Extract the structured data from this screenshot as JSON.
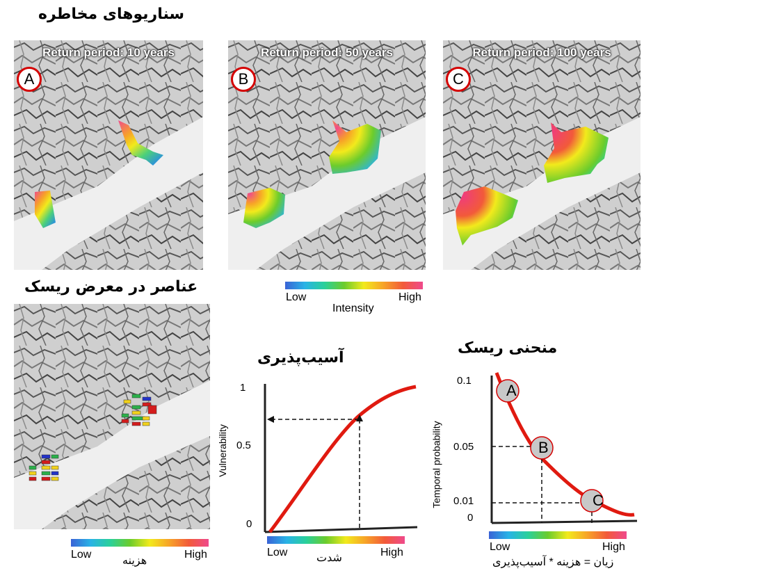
{
  "titles": {
    "hazard_scenarios": "سناریوهای مخاطره",
    "elements_at_risk": "عناصر در معرض ریسک",
    "vulnerability": "آسیب‌پذیری",
    "risk_curve": "منحنی ریسک"
  },
  "scenarios": [
    {
      "letter": "A",
      "label": "Return period: 10 years"
    },
    {
      "letter": "B",
      "label": "Return period: 50 years"
    },
    {
      "letter": "C",
      "label": "Return period: 100 years"
    }
  ],
  "intensity_legend": {
    "low": "Low",
    "high": "High",
    "title": "Intensity"
  },
  "cost_legend": {
    "low": "Low",
    "high": "High",
    "title": "هزینه"
  },
  "severity_legend": {
    "low": "Low",
    "high": "High",
    "title": "شدت"
  },
  "risk_legend": {
    "low": "Low",
    "high": "High",
    "formula": "زیان = هزینه * آسیب‌پذیری"
  },
  "vulnerability_chart": {
    "ylabel": "Vulnerability",
    "yticks": [
      "1",
      "0.5",
      "0"
    ]
  },
  "risk_chart": {
    "ylabel": "Temporal probability",
    "yticks": [
      "0.1",
      "0.05",
      "0.01",
      "0"
    ],
    "points": [
      "A",
      "B",
      "C"
    ]
  },
  "colors": {
    "curve": "#e01a10",
    "point_fill": "#c8c8c8",
    "circle_border": "#d40000"
  }
}
